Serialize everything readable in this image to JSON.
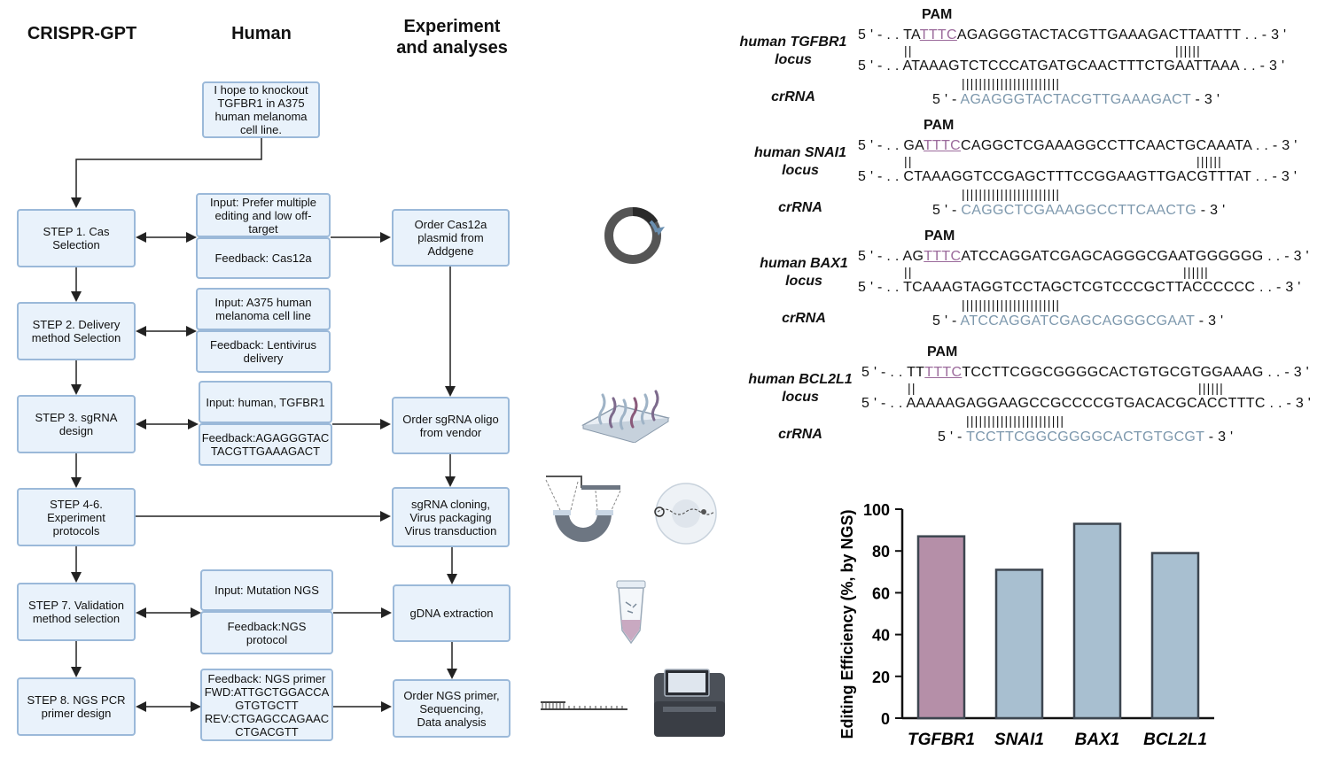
{
  "headers": {
    "crispr_gpt": "CRISPR-GPT",
    "human": "Human",
    "experiment": "Experiment\nand analyses"
  },
  "request": [
    "I hope to knockout",
    "TGFBR1 in A375",
    "human melanoma",
    "cell line."
  ],
  "steps": [
    [
      "STEP 1. Cas",
      "Selection"
    ],
    [
      "STEP 2. Delivery",
      "method Selection"
    ],
    [
      "STEP 3. sgRNA",
      "design"
    ],
    [
      "STEP 4-6.",
      "Experiment",
      "protocols"
    ],
    [
      "STEP 7. Validation",
      "method selection"
    ],
    [
      "STEP 8. NGS PCR",
      "primer design"
    ]
  ],
  "human_inputs": [
    [
      "Input: Prefer multiple",
      "editing and low off-",
      "target"
    ],
    [
      "Feedback: Cas12a"
    ],
    [
      "Input: A375 human",
      "melanoma cell line"
    ],
    [
      "Feedback: Lentivirus",
      "delivery"
    ],
    [
      "Input: human, TGFBR1"
    ],
    [
      "Feedback:AGAGGGTAC",
      "TACGTTGAAAGACT"
    ],
    [
      "Input: Mutation NGS"
    ],
    [
      "Feedback:NGS",
      "protocol"
    ],
    [
      "Feedback: NGS primer",
      "FWD:ATTGCTGGACCA",
      "GTGTGCTT",
      "REV:CTGAGCCAGAAC",
      "CTGACGTT"
    ]
  ],
  "experiments": [
    [
      "Order Cas12a",
      "plasmid from",
      "Addgene"
    ],
    [
      "Order sgRNA oligo",
      "from vendor"
    ],
    [
      "sgRNA cloning,",
      "Virus packaging",
      "Virus transduction"
    ],
    [
      "gDNA extraction"
    ],
    [
      "Order NGS primer,",
      "Sequencing,",
      "Data analysis"
    ]
  ],
  "sequences": [
    {
      "locus": [
        "human TGFBR1",
        "locus"
      ],
      "pam_label": "PAM",
      "top_pre": "5 ' - . . TA",
      "top_pam": "TTTC",
      "top_post": "AGAGGGTACTACGTTGAAAGACTTAATTT . . - 3 '",
      "bars_left": "||",
      "bars_right": "||||||",
      "bottom": "5 ' - . . ATAAAGTCTCCCATGATGCAACTTTCTGAATTAAA . . - 3 '",
      "bars_mid": "|||||||||||||||||||||||",
      "cr_label": "crRNA",
      "cr_pre": "5 ' - ",
      "cr_seq": "AGAGGGTACTACGTTGAAAGACT",
      "cr_post": " - 3 '"
    },
    {
      "locus": [
        "human SNAI1",
        "locus"
      ],
      "pam_label": "PAM",
      "top_pre": "5 ' - . . GA",
      "top_pam": "TTTC",
      "top_post": "CAGGCTCGAAAGGCCTTCAACTGCAAATA . . - 3 '",
      "bars_left": "||",
      "bars_right": "||||||",
      "bottom": "5 ' - . . CTAAAGGTCCGAGCTTTCCGGAAGTTGACGTTTAT . . - 3 '",
      "bars_mid": "|||||||||||||||||||||||",
      "cr_label": "crRNA",
      "cr_pre": "5 ' - ",
      "cr_seq": "CAGGCTCGAAAGGCCTTCAACTG",
      "cr_post": " - 3 '"
    },
    {
      "locus": [
        "human BAX1",
        "locus"
      ],
      "pam_label": "PAM",
      "top_pre": "5 ' - . . AG",
      "top_pam": "TTTC",
      "top_post": "ATCCAGGATCGAGCAGGGCGAATGGGGGG . . - 3 '",
      "bars_left": "||",
      "bars_right": "||||||",
      "bottom": "5 ' - . . TCAAAGTAGGTCCTAGCTCGTCCCGCTTACCCCCC . . - 3 '",
      "bars_mid": "|||||||||||||||||||||||",
      "cr_label": "crRNA",
      "cr_pre": "5 ' - ",
      "cr_seq": "ATCCAGGATCGAGCAGGGCGAAT",
      "cr_post": " - 3 '"
    },
    {
      "locus": [
        "human BCL2L1",
        "locus"
      ],
      "pam_label": "PAM",
      "top_pre": "5 ' - . . TT",
      "top_pam": "TTTC",
      "top_post": "TCCTTCGGCGGGGCACTGTGCGTGGAAAG . . - 3 '",
      "bars_left": "||",
      "bars_right": "||||||",
      "bottom": "5 ' - . . AAAAAGAGGAAGCCGCCCCGTGACACGCACCTTTC . . - 3 '",
      "bars_mid": "|||||||||||||||||||||||",
      "cr_label": "crRNA",
      "cr_pre": "5 ' - ",
      "cr_seq": "TCCTTCGGCGGGGCACTGTGCGT",
      "cr_post": " - 3 '"
    }
  ],
  "chart_data": {
    "type": "bar",
    "categories": [
      "TGFBR1",
      "SNAI1",
      "BAX1",
      "BCL2L1"
    ],
    "values": [
      87,
      71,
      93,
      79
    ],
    "colors": [
      "#b58fa8",
      "#a8bfd0",
      "#a8bfd0",
      "#a8bfd0"
    ],
    "ylabel": "Editing Efficiency (%, by NGS)",
    "ylim": [
      0,
      100
    ],
    "yticks": [
      0,
      20,
      40,
      60,
      80,
      100
    ]
  },
  "icons": {
    "plasmid": "plasmid-icon",
    "oligo": "oligo-array-icon",
    "virus": "virus-packaging-icon",
    "cell": "cell-transduction-icon",
    "tube": "tube-icon",
    "dna": "dna-primer-icon",
    "sequencer": "sequencer-icon"
  }
}
